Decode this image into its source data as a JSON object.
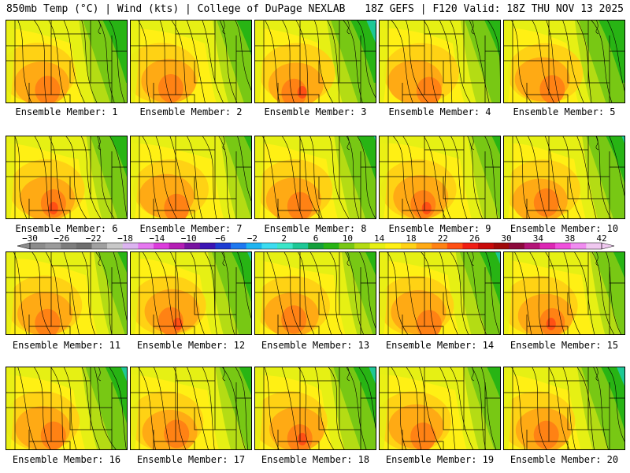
{
  "header": {
    "left": "850mb Temp (°C) | Wind (kts) | College of DuPage NEXLAB",
    "right": "18Z GEFS | F120 Valid: 18Z THU NOV 13 2025"
  },
  "members": [
    "Ensemble Member: 1",
    "Ensemble Member: 2",
    "Ensemble Member: 3",
    "Ensemble Member: 4",
    "Ensemble Member: 5",
    "Ensemble Member: 6",
    "Ensemble Member: 7",
    "Ensemble Member: 8",
    "Ensemble Member: 9",
    "Ensemble Member: 10",
    "Ensemble Member: 11",
    "Ensemble Member: 12",
    "Ensemble Member: 13",
    "Ensemble Member: 14",
    "Ensemble Member: 15",
    "Ensemble Member: 16",
    "Ensemble Member: 17",
    "Ensemble Member: 18",
    "Ensemble Member: 19",
    "Ensemble Member: 20"
  ],
  "colorbar": {
    "ticks": [
      "−30",
      "−26",
      "−22",
      "−18",
      "−14",
      "−10",
      "−6",
      "−2",
      "2",
      "6",
      "10",
      "14",
      "18",
      "22",
      "26",
      "30",
      "34",
      "38",
      "42"
    ],
    "colors": [
      "#8c8c8c",
      "#9b9b9b",
      "#7d7d7d",
      "#6e6e6e",
      "#a0a0a0",
      "#c8c8c8",
      "#dcb4f0",
      "#e678f0",
      "#dc3cdc",
      "#b41eb4",
      "#7814a0",
      "#3c14b4",
      "#1e3cd2",
      "#1e78f0",
      "#1eb4f0",
      "#3cdcf0",
      "#3ce6c8",
      "#1ec896",
      "#14a03c",
      "#28b414",
      "#78c814",
      "#b4dc14",
      "#e6f014",
      "#fff014",
      "#ffd214",
      "#ffaa14",
      "#ff8214",
      "#ff5014",
      "#f01e14",
      "#c80a0a",
      "#a00a0a",
      "#8c0a3c",
      "#b41478",
      "#dc28b4",
      "#f050dc",
      "#f08cf0",
      "#f0c8f0"
    ]
  },
  "map_colors": {
    "bg": "#b4dc14",
    "green": "#78c814",
    "dkgreen": "#28b414",
    "teal": "#1ec896",
    "cyan": "#3cdcf0",
    "yellow": "#e6f014",
    "ylw2": "#fff014",
    "gold": "#ffd214",
    "orange": "#ffaa14",
    "dkorange": "#ff8214",
    "red": "#ff5014",
    "line": "#000000"
  }
}
